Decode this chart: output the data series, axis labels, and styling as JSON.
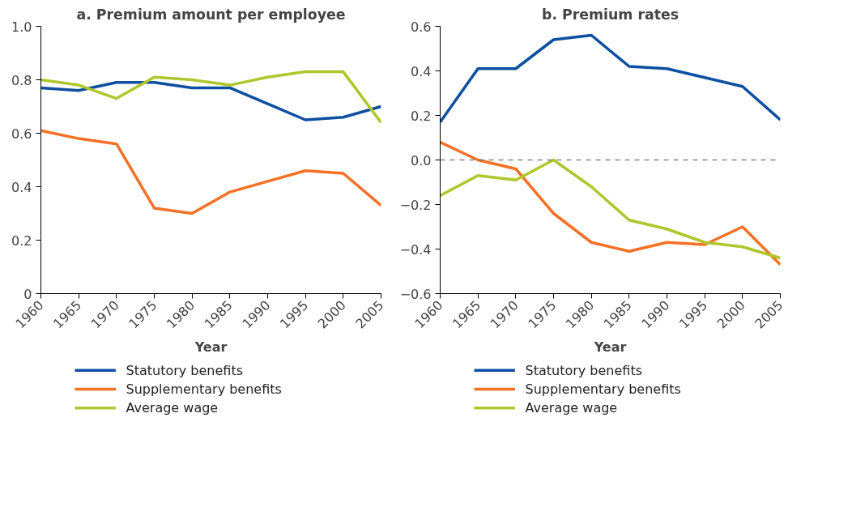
{
  "chart_data": [
    {
      "type": "line",
      "title": "a. Premium amount per employee",
      "xlabel": "Year",
      "x": [
        1960,
        1965,
        1970,
        1975,
        1980,
        1985,
        1990,
        1995,
        2000,
        2005
      ],
      "xlim": [
        1960,
        2005
      ],
      "xticks": [
        1960,
        1965,
        1970,
        1975,
        1980,
        1985,
        1990,
        1995,
        2000,
        2005
      ],
      "ylim": [
        0,
        1.0
      ],
      "yticks": [
        {
          "value": 0,
          "label": "0"
        },
        0.2,
        0.4,
        0.6,
        0.8,
        {
          "value": 1.0,
          "label": "1.0"
        }
      ],
      "grid": false,
      "legend": "bottom",
      "line_style": "solid",
      "marker": "none",
      "series": [
        {
          "name": "Statutory benefits",
          "color": "#0d4fa1",
          "values": [
            0.77,
            0.76,
            0.79,
            0.79,
            0.77,
            0.77,
            0.71,
            0.65,
            0.66,
            0.7
          ]
        },
        {
          "name": "Supplementary benefits",
          "color": "#f47125",
          "values": [
            0.61,
            0.58,
            0.56,
            0.32,
            0.3,
            0.38,
            0.42,
            0.46,
            0.45,
            0.33
          ]
        },
        {
          "name": "Average wage",
          "color": "#afc72c",
          "values": [
            0.8,
            0.78,
            0.73,
            0.81,
            0.8,
            0.78,
            0.81,
            0.83,
            0.83,
            0.64
          ]
        }
      ]
    },
    {
      "type": "line",
      "title": "b. Premium rates",
      "xlabel": "Year",
      "x": [
        1960,
        1965,
        1970,
        1975,
        1980,
        1985,
        1990,
        1995,
        2000,
        2005
      ],
      "xlim": [
        1960,
        2005
      ],
      "xticks": [
        1960,
        1965,
        1970,
        1975,
        1980,
        1985,
        1990,
        1995,
        2000,
        2005
      ],
      "ylim": [
        -0.6,
        0.6
      ],
      "yticks": [
        {
          "value": -0.6,
          "label": "−0.6"
        },
        {
          "value": -0.4,
          "label": "−0.4"
        },
        {
          "value": -0.2,
          "label": "−0.2"
        },
        {
          "value": 0,
          "label": "0.0"
        },
        0.2,
        0.4,
        0.6
      ],
      "grid": false,
      "legend": "bottom",
      "line_style": "solid",
      "marker": "none",
      "ref_lines": [
        {
          "axis": "y",
          "value": 0,
          "color": "#555555",
          "line_style": "dashed"
        }
      ],
      "series": [
        {
          "name": "Statutory benefits",
          "color": "#0d4fa1",
          "values": [
            0.17,
            0.41,
            0.41,
            0.54,
            0.56,
            0.42,
            0.41,
            0.37,
            0.33,
            0.18
          ]
        },
        {
          "name": "Supplementary benefits",
          "color": "#f47125",
          "values": [
            0.08,
            0.0,
            -0.04,
            -0.24,
            -0.37,
            -0.41,
            -0.37,
            -0.38,
            -0.3,
            -0.47
          ]
        },
        {
          "name": "Average wage",
          "color": "#afc72c",
          "values": [
            -0.16,
            -0.07,
            -0.09,
            0.0,
            -0.12,
            -0.27,
            -0.31,
            -0.37,
            -0.39,
            -0.44
          ]
        }
      ]
    }
  ]
}
